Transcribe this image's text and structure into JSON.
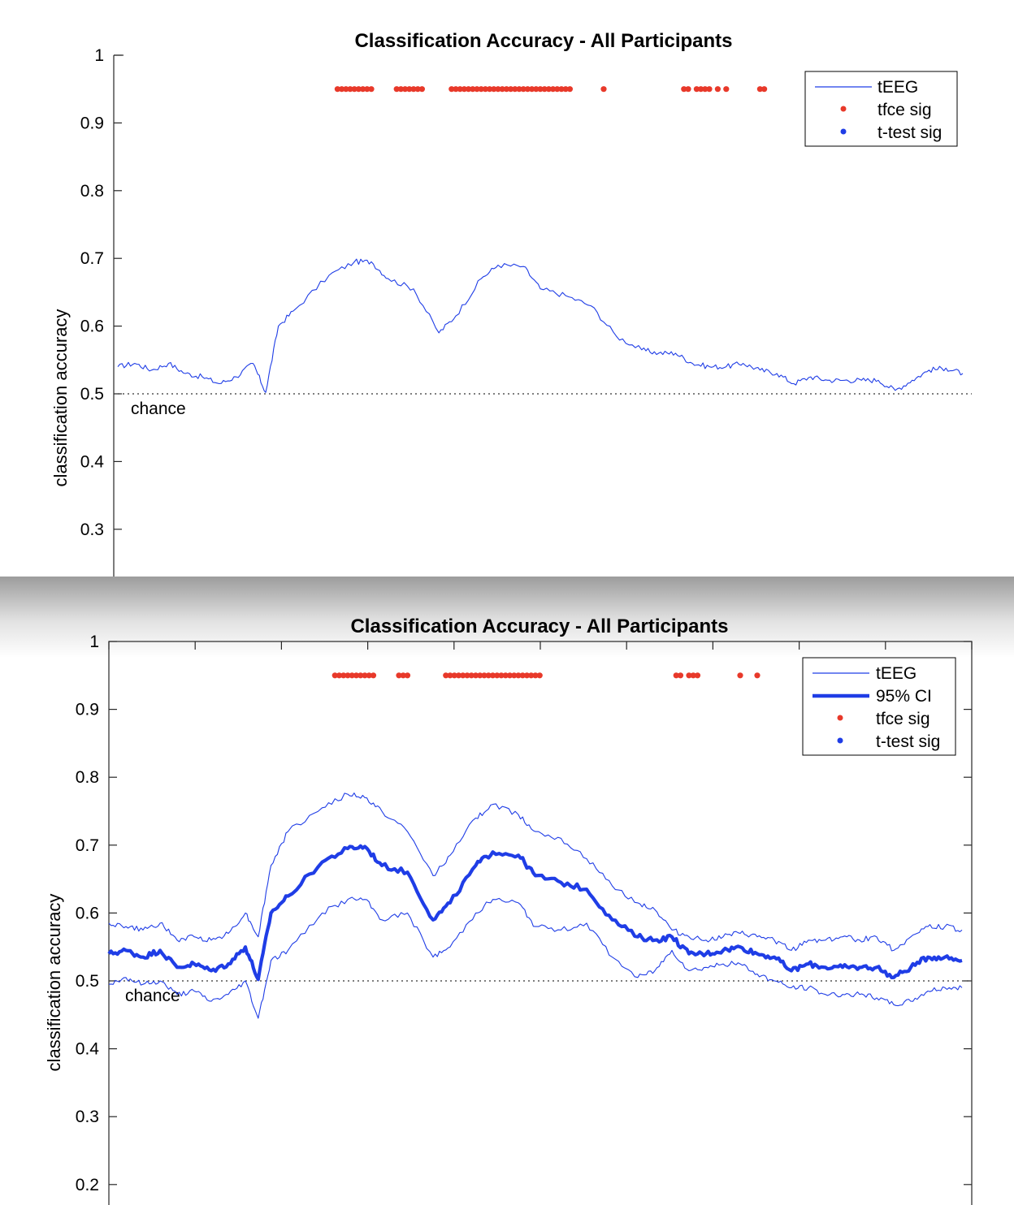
{
  "chart_data": [
    {
      "type": "line",
      "title": "Classification Accuracy - All Participants",
      "xlabel": "",
      "ylabel": "classification accuracy",
      "ylim": [
        0.22,
        1.0
      ],
      "yticks": [
        1,
        0.9,
        0.8,
        0.7,
        0.6,
        0.5,
        0.4,
        0.3
      ],
      "ytick_labels": [
        "1",
        "0.9",
        "0.8",
        "0.7",
        "0.6",
        "0.5",
        "0.4",
        "0.3"
      ],
      "xlim": [
        0,
        1
      ],
      "grid": false,
      "legend": {
        "position": "top-right",
        "entries": [
          "tEEG",
          "tfce sig",
          "t-test sig"
        ]
      },
      "chance_level": 0.5,
      "chance_label": "chance",
      "series": [
        {
          "name": "tEEG",
          "color": "#1f3de6",
          "style": "thin-line",
          "x": [
            0,
            0.02,
            0.04,
            0.06,
            0.08,
            0.1,
            0.12,
            0.14,
            0.16,
            0.175,
            0.19,
            0.21,
            0.25,
            0.28,
            0.3,
            0.32,
            0.35,
            0.38,
            0.4,
            0.43,
            0.45,
            0.48,
            0.5,
            0.53,
            0.56,
            0.59,
            0.62,
            0.64,
            0.66,
            0.68,
            0.7,
            0.72,
            0.74,
            0.76,
            0.78,
            0.8,
            0.82,
            0.84,
            0.86,
            0.88,
            0.9,
            0.92,
            0.94,
            0.96,
            0.98,
            1.0
          ],
          "y": [
            0.54,
            0.545,
            0.535,
            0.545,
            0.53,
            0.525,
            0.515,
            0.525,
            0.545,
            0.502,
            0.6,
            0.625,
            0.675,
            0.695,
            0.695,
            0.67,
            0.655,
            0.59,
            0.615,
            0.67,
            0.69,
            0.688,
            0.655,
            0.645,
            0.63,
            0.585,
            0.565,
            0.56,
            0.56,
            0.545,
            0.54,
            0.54,
            0.545,
            0.535,
            0.53,
            0.515,
            0.525,
            0.52,
            0.52,
            0.52,
            0.52,
            0.505,
            0.52,
            0.535,
            0.538,
            0.53
          ]
        },
        {
          "name": "tfce sig",
          "color": "#e8392a",
          "style": "dots",
          "y_level": 0.95,
          "x": [
            0.26,
            0.265,
            0.27,
            0.275,
            0.28,
            0.285,
            0.29,
            0.295,
            0.3,
            0.33,
            0.335,
            0.34,
            0.345,
            0.35,
            0.355,
            0.36,
            0.395,
            0.4,
            0.405,
            0.41,
            0.415,
            0.42,
            0.425,
            0.43,
            0.435,
            0.44,
            0.445,
            0.45,
            0.455,
            0.46,
            0.465,
            0.47,
            0.475,
            0.48,
            0.485,
            0.49,
            0.495,
            0.5,
            0.505,
            0.51,
            0.515,
            0.52,
            0.525,
            0.53,
            0.535,
            0.575,
            0.67,
            0.675,
            0.685,
            0.69,
            0.695,
            0.7,
            0.71,
            0.72,
            0.76,
            0.765
          ]
        },
        {
          "name": "t-test sig",
          "color": "#1f3de6",
          "style": "dots",
          "y_level": 0.95,
          "x": []
        }
      ]
    },
    {
      "type": "line",
      "title": "Classification Accuracy - All Participants",
      "xlabel": "",
      "ylabel": "classification accuracy",
      "ylim": [
        0.17,
        1.0
      ],
      "yticks": [
        1,
        0.9,
        0.8,
        0.7,
        0.6,
        0.5,
        0.4,
        0.3,
        0.2
      ],
      "ytick_labels": [
        "1",
        "0.9",
        "0.8",
        "0.7",
        "0.6",
        "0.5",
        "0.4",
        "0.3",
        "0.2"
      ],
      "xlim": [
        0,
        1
      ],
      "grid": false,
      "legend": {
        "position": "top-right",
        "entries": [
          "tEEG",
          "95% CI",
          "tfce sig",
          "t-test sig"
        ]
      },
      "chance_level": 0.5,
      "chance_label": "chance",
      "series": [
        {
          "name": "tEEG",
          "color": "#1f3de6",
          "style": "thick-line",
          "x": [
            0,
            0.02,
            0.04,
            0.06,
            0.08,
            0.1,
            0.12,
            0.14,
            0.16,
            0.175,
            0.19,
            0.21,
            0.25,
            0.28,
            0.3,
            0.32,
            0.35,
            0.38,
            0.4,
            0.43,
            0.45,
            0.48,
            0.5,
            0.53,
            0.56,
            0.59,
            0.62,
            0.64,
            0.66,
            0.68,
            0.7,
            0.72,
            0.74,
            0.76,
            0.78,
            0.8,
            0.82,
            0.84,
            0.86,
            0.88,
            0.9,
            0.92,
            0.94,
            0.96,
            0.98,
            1.0
          ],
          "y": [
            0.54,
            0.545,
            0.535,
            0.545,
            0.52,
            0.525,
            0.515,
            0.525,
            0.55,
            0.502,
            0.6,
            0.625,
            0.675,
            0.695,
            0.698,
            0.67,
            0.66,
            0.59,
            0.615,
            0.67,
            0.69,
            0.685,
            0.655,
            0.645,
            0.635,
            0.59,
            0.565,
            0.56,
            0.565,
            0.54,
            0.54,
            0.545,
            0.55,
            0.54,
            0.535,
            0.515,
            0.525,
            0.52,
            0.52,
            0.52,
            0.52,
            0.505,
            0.52,
            0.535,
            0.535,
            0.53
          ]
        },
        {
          "name": "95% CI",
          "color": "#1f3de6",
          "style": "thin-line",
          "x": [
            0,
            0.02,
            0.04,
            0.06,
            0.08,
            0.1,
            0.12,
            0.14,
            0.16,
            0.175,
            0.19,
            0.21,
            0.25,
            0.28,
            0.3,
            0.32,
            0.35,
            0.38,
            0.4,
            0.43,
            0.45,
            0.48,
            0.5,
            0.53,
            0.56,
            0.59,
            0.62,
            0.64,
            0.66,
            0.68,
            0.7,
            0.72,
            0.74,
            0.76,
            0.78,
            0.8,
            0.82,
            0.84,
            0.86,
            0.88,
            0.9,
            0.92,
            0.94,
            0.96,
            0.98,
            1.0
          ],
          "y": [
            0.585,
            0.58,
            0.575,
            0.585,
            0.56,
            0.565,
            0.56,
            0.57,
            0.6,
            0.565,
            0.67,
            0.72,
            0.755,
            0.775,
            0.77,
            0.75,
            0.72,
            0.655,
            0.685,
            0.74,
            0.76,
            0.745,
            0.72,
            0.71,
            0.68,
            0.64,
            0.615,
            0.605,
            0.575,
            0.565,
            0.56,
            0.565,
            0.57,
            0.565,
            0.56,
            0.545,
            0.56,
            0.56,
            0.565,
            0.56,
            0.565,
            0.545,
            0.565,
            0.58,
            0.58,
            0.575
          ]
        },
        {
          "name": "95% CI lower",
          "color": "#1f3de6",
          "style": "thin-line",
          "x": [
            0,
            0.02,
            0.04,
            0.06,
            0.08,
            0.1,
            0.12,
            0.14,
            0.16,
            0.175,
            0.19,
            0.21,
            0.25,
            0.28,
            0.3,
            0.32,
            0.35,
            0.38,
            0.4,
            0.43,
            0.45,
            0.48,
            0.5,
            0.53,
            0.56,
            0.59,
            0.62,
            0.64,
            0.66,
            0.68,
            0.7,
            0.72,
            0.74,
            0.76,
            0.78,
            0.8,
            0.82,
            0.84,
            0.86,
            0.88,
            0.9,
            0.92,
            0.94,
            0.96,
            0.98,
            1.0
          ],
          "y": [
            0.495,
            0.505,
            0.495,
            0.5,
            0.48,
            0.485,
            0.47,
            0.48,
            0.5,
            0.445,
            0.53,
            0.545,
            0.6,
            0.62,
            0.62,
            0.59,
            0.6,
            0.535,
            0.55,
            0.6,
            0.62,
            0.615,
            0.58,
            0.575,
            0.585,
            0.535,
            0.505,
            0.515,
            0.545,
            0.515,
            0.52,
            0.525,
            0.525,
            0.51,
            0.5,
            0.49,
            0.49,
            0.48,
            0.48,
            0.48,
            0.475,
            0.465,
            0.47,
            0.485,
            0.49,
            0.49
          ]
        },
        {
          "name": "tfce sig",
          "color": "#e8392a",
          "style": "dots",
          "y_level": 0.95,
          "x": [
            0.265,
            0.27,
            0.275,
            0.28,
            0.285,
            0.29,
            0.295,
            0.3,
            0.305,
            0.31,
            0.34,
            0.345,
            0.35,
            0.395,
            0.4,
            0.405,
            0.41,
            0.415,
            0.42,
            0.425,
            0.43,
            0.435,
            0.44,
            0.445,
            0.45,
            0.455,
            0.46,
            0.465,
            0.47,
            0.475,
            0.48,
            0.485,
            0.49,
            0.495,
            0.5,
            0.505,
            0.665,
            0.67,
            0.68,
            0.685,
            0.69,
            0.74,
            0.76
          ]
        },
        {
          "name": "t-test sig",
          "color": "#1f3de6",
          "style": "dots",
          "y_level": 0.95,
          "x": []
        }
      ]
    }
  ]
}
